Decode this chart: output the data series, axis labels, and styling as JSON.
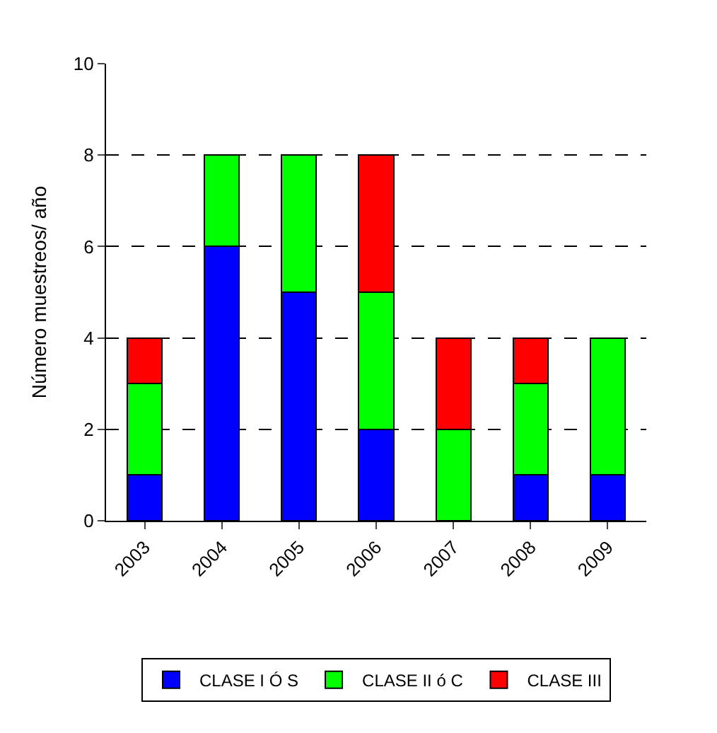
{
  "chart_data": {
    "type": "bar",
    "stacked": true,
    "ylabel": "Número muestreos/ año",
    "categories": [
      "2003",
      "2004",
      "2005",
      "2006",
      "2007",
      "2008",
      "2009"
    ],
    "series": [
      {
        "name": "CLASE I Ó S",
        "color": "#0000ff",
        "values": [
          1,
          6,
          5,
          2,
          0,
          1,
          1
        ]
      },
      {
        "name": "CLASE II ó C",
        "color": "#00ff00",
        "values": [
          2,
          2,
          3,
          3,
          2,
          2,
          3
        ]
      },
      {
        "name": "CLASE III",
        "color": "#ff0000",
        "values": [
          1,
          0,
          0,
          3,
          2,
          1,
          0
        ]
      }
    ],
    "ylim": [
      0,
      10
    ],
    "yticks": [
      0,
      2,
      4,
      6,
      8,
      10
    ],
    "grid": "y",
    "legend": "bottom"
  }
}
